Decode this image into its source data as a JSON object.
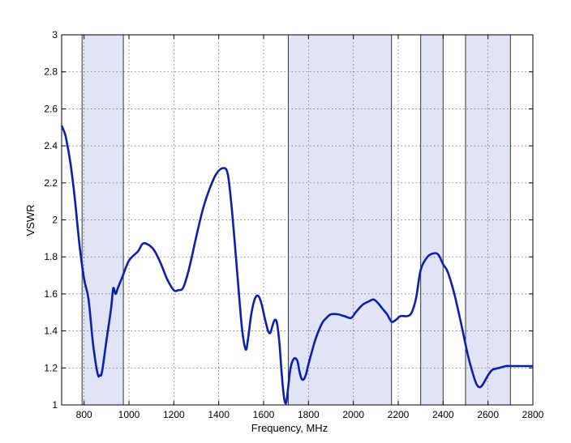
{
  "chart_data": {
    "type": "line",
    "title": "",
    "xlabel": "Frequency, MHz",
    "ylabel": "VSWR",
    "xlim": [
      700,
      2800
    ],
    "ylim": [
      1,
      3
    ],
    "xticks": [
      800,
      1000,
      1200,
      1400,
      1600,
      1800,
      2000,
      2200,
      2400,
      2600,
      2800
    ],
    "yticks": [
      1,
      1.2,
      1.4,
      1.6,
      1.8,
      2,
      2.2,
      2.4,
      2.6,
      2.8,
      3
    ],
    "ytick_labels": [
      "1",
      "1.2",
      "1.4",
      "1.6",
      "1.8",
      "2",
      "2.2",
      "2.4",
      "2.6",
      "2.8",
      "3"
    ],
    "grid": true,
    "line_color": "#0a1fb0",
    "band_color": "#e1e4f7",
    "bands": [
      [
        791,
        975
      ],
      [
        1710,
        2170
      ],
      [
        2300,
        2400
      ],
      [
        2500,
        2700
      ]
    ],
    "series": [
      {
        "x": [
          700,
          710,
          720,
          740,
          760,
          780,
          800,
          820,
          840,
          860,
          870,
          880,
          900,
          920,
          930,
          940,
          950,
          970,
          1000,
          1040,
          1060,
          1080,
          1110,
          1140,
          1170,
          1200,
          1220,
          1240,
          1260,
          1280,
          1300,
          1330,
          1360,
          1390,
          1420,
          1440,
          1455,
          1470,
          1490,
          1505,
          1520,
          1530,
          1545,
          1560,
          1575,
          1590,
          1605,
          1620,
          1630,
          1640,
          1650,
          1660,
          1670,
          1680,
          1690,
          1700,
          1710,
          1720,
          1735,
          1750,
          1760,
          1770,
          1780,
          1790,
          1800,
          1830,
          1860,
          1880,
          1900,
          1930,
          1960,
          1990,
          2010,
          2040,
          2070,
          2090,
          2110,
          2130,
          2150,
          2170,
          2190,
          2210,
          2240,
          2260,
          2280,
          2300,
          2330,
          2360,
          2380,
          2400,
          2420,
          2450,
          2480,
          2510,
          2530,
          2550,
          2570,
          2600,
          2620,
          2650,
          2680,
          2700,
          2730,
          2760,
          2800
        ],
        "y": [
          2.51,
          2.48,
          2.44,
          2.3,
          2.1,
          1.86,
          1.68,
          1.57,
          1.33,
          1.17,
          1.16,
          1.18,
          1.35,
          1.52,
          1.63,
          1.6,
          1.63,
          1.69,
          1.78,
          1.83,
          1.87,
          1.87,
          1.84,
          1.77,
          1.68,
          1.62,
          1.62,
          1.63,
          1.7,
          1.8,
          1.91,
          2.06,
          2.17,
          2.25,
          2.28,
          2.25,
          2.1,
          1.9,
          1.6,
          1.4,
          1.3,
          1.35,
          1.49,
          1.57,
          1.59,
          1.55,
          1.47,
          1.4,
          1.39,
          1.43,
          1.46,
          1.44,
          1.34,
          1.18,
          1.05,
          1.01,
          1.1,
          1.2,
          1.25,
          1.24,
          1.18,
          1.14,
          1.14,
          1.17,
          1.22,
          1.35,
          1.44,
          1.47,
          1.49,
          1.49,
          1.48,
          1.47,
          1.5,
          1.54,
          1.56,
          1.57,
          1.55,
          1.52,
          1.49,
          1.45,
          1.46,
          1.48,
          1.48,
          1.5,
          1.58,
          1.73,
          1.8,
          1.82,
          1.81,
          1.76,
          1.72,
          1.6,
          1.44,
          1.27,
          1.18,
          1.11,
          1.1,
          1.16,
          1.19,
          1.2,
          1.21,
          1.21,
          1.21,
          1.21,
          1.21
        ]
      }
    ]
  }
}
